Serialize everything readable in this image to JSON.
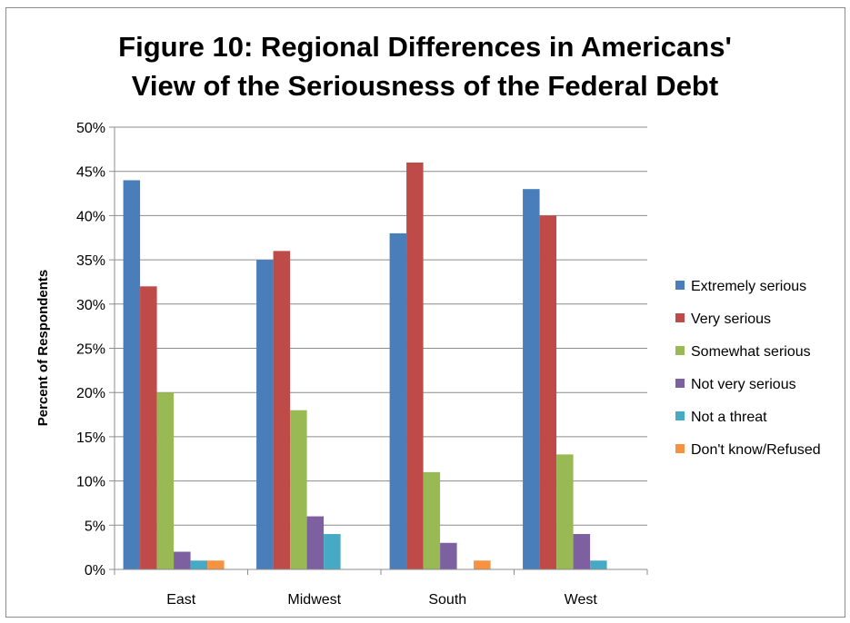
{
  "chart_data": {
    "type": "bar",
    "title_line1": "Figure 10: Regional Differences in Americans'",
    "title_line2": "View of the Seriousness of the Federal Debt",
    "xlabel": "",
    "ylabel": "Percent of Respondents",
    "ylim": [
      0,
      50
    ],
    "yticks": [
      "0%",
      "5%",
      "10%",
      "15%",
      "20%",
      "25%",
      "30%",
      "35%",
      "40%",
      "45%",
      "50%"
    ],
    "categories": [
      "East",
      "Midwest",
      "South",
      "West"
    ],
    "grid": true,
    "legend_position": "right",
    "series": [
      {
        "name": "Extremely serious",
        "color": "#4a7ebb",
        "values": [
          44,
          35,
          38,
          43
        ]
      },
      {
        "name": "Very serious",
        "color": "#be4b48",
        "values": [
          32,
          36,
          46,
          40
        ]
      },
      {
        "name": "Somewhat serious",
        "color": "#98b954",
        "values": [
          20,
          18,
          11,
          13
        ]
      },
      {
        "name": "Not very serious",
        "color": "#7d60a0",
        "values": [
          2,
          6,
          3,
          4
        ]
      },
      {
        "name": "Not a threat",
        "color": "#46aac5",
        "values": [
          1,
          4,
          0,
          1
        ]
      },
      {
        "name": "Don't know/Refused",
        "color": "#f69240",
        "values": [
          1,
          0,
          1,
          0
        ]
      }
    ]
  }
}
